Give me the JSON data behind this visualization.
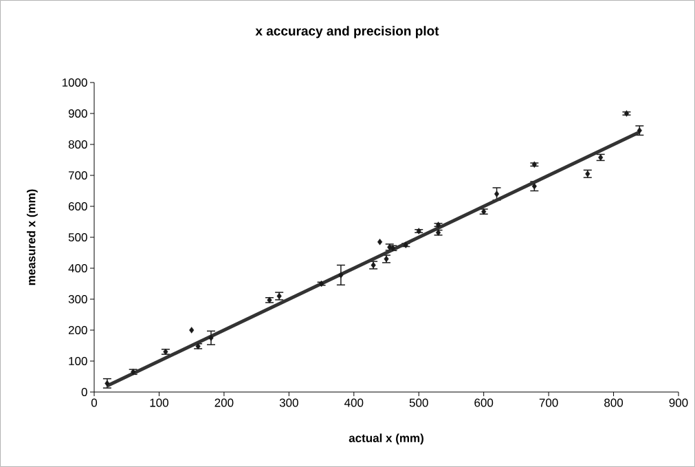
{
  "chart_data": {
    "type": "scatter",
    "title": "x accuracy and precision plot",
    "xlabel": "actual x (mm)",
    "ylabel": "measured x (mm)",
    "xlim": [
      0,
      900
    ],
    "ylim": [
      0,
      1000
    ],
    "xticks": [
      0,
      100,
      200,
      300,
      400,
      500,
      600,
      700,
      800,
      900
    ],
    "yticks": [
      0,
      100,
      200,
      300,
      400,
      500,
      600,
      700,
      800,
      900,
      1000
    ],
    "grid": false,
    "marker": "diamond",
    "series": [
      {
        "color": "#1a1a1a",
        "x": [
          20,
          60,
          110,
          150,
          160,
          180,
          270,
          285,
          350,
          380,
          430,
          440,
          450,
          455,
          460,
          480,
          500,
          530,
          530,
          600,
          620,
          678,
          678,
          760,
          780,
          820,
          840
        ],
        "values": [
          28,
          65,
          130,
          200,
          148,
          175,
          297,
          310,
          350,
          378,
          410,
          485,
          430,
          468,
          465,
          475,
          520,
          515,
          540,
          583,
          640,
          735,
          665,
          705,
          758,
          900,
          845
        ],
        "errors": [
          15,
          8,
          8,
          null,
          8,
          22,
          8,
          12,
          5,
          32,
          12,
          null,
          12,
          10,
          8,
          5,
          5,
          8,
          5,
          8,
          20,
          5,
          15,
          12,
          10,
          5,
          15
        ]
      },
      {
        "type": "line",
        "marker": "none",
        "color": "#333333",
        "x": [
          20,
          840
        ],
        "values": [
          20,
          840
        ]
      }
    ]
  }
}
